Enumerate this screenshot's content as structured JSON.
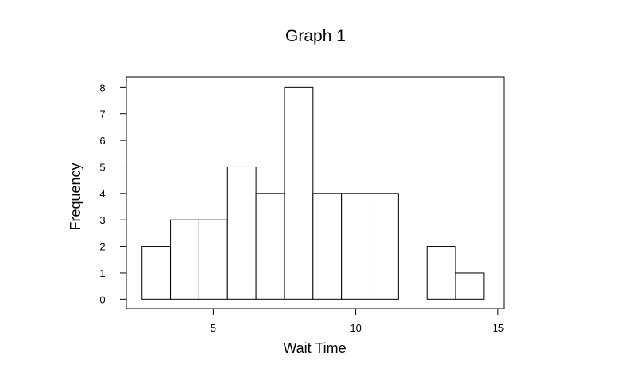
{
  "chart_data": {
    "type": "bar",
    "title": "Graph 1",
    "xlabel": "Wait Time",
    "ylabel": "Frequency",
    "bin_width": 1,
    "bins": [
      {
        "start": 2.5,
        "end": 3.5,
        "value": 2
      },
      {
        "start": 3.5,
        "end": 4.5,
        "value": 3
      },
      {
        "start": 4.5,
        "end": 5.5,
        "value": 3
      },
      {
        "start": 5.5,
        "end": 6.5,
        "value": 5
      },
      {
        "start": 6.5,
        "end": 7.5,
        "value": 4
      },
      {
        "start": 7.5,
        "end": 8.5,
        "value": 8
      },
      {
        "start": 8.5,
        "end": 9.5,
        "value": 4
      },
      {
        "start": 9.5,
        "end": 10.5,
        "value": 4
      },
      {
        "start": 10.5,
        "end": 11.5,
        "value": 4
      },
      {
        "start": 11.5,
        "end": 12.5,
        "value": 0
      },
      {
        "start": 12.5,
        "end": 13.5,
        "value": 2
      },
      {
        "start": 13.5,
        "end": 14.5,
        "value": 1
      }
    ],
    "xlim": [
      1.95,
      15.2
    ],
    "ylim": [
      -0.35,
      8.4
    ],
    "x_ticks": [
      5,
      10,
      15
    ],
    "x_tick_labels": [
      "5",
      "10",
      "15"
    ],
    "y_ticks": [
      0,
      1,
      2,
      3,
      4,
      5,
      6,
      7,
      8
    ],
    "y_tick_labels": [
      "0",
      "1",
      "2",
      "3",
      "4",
      "5",
      "6",
      "7",
      "8"
    ],
    "bar_fill": "#ffffff",
    "stroke_color": "#000000",
    "grid": false,
    "legend": "none"
  }
}
